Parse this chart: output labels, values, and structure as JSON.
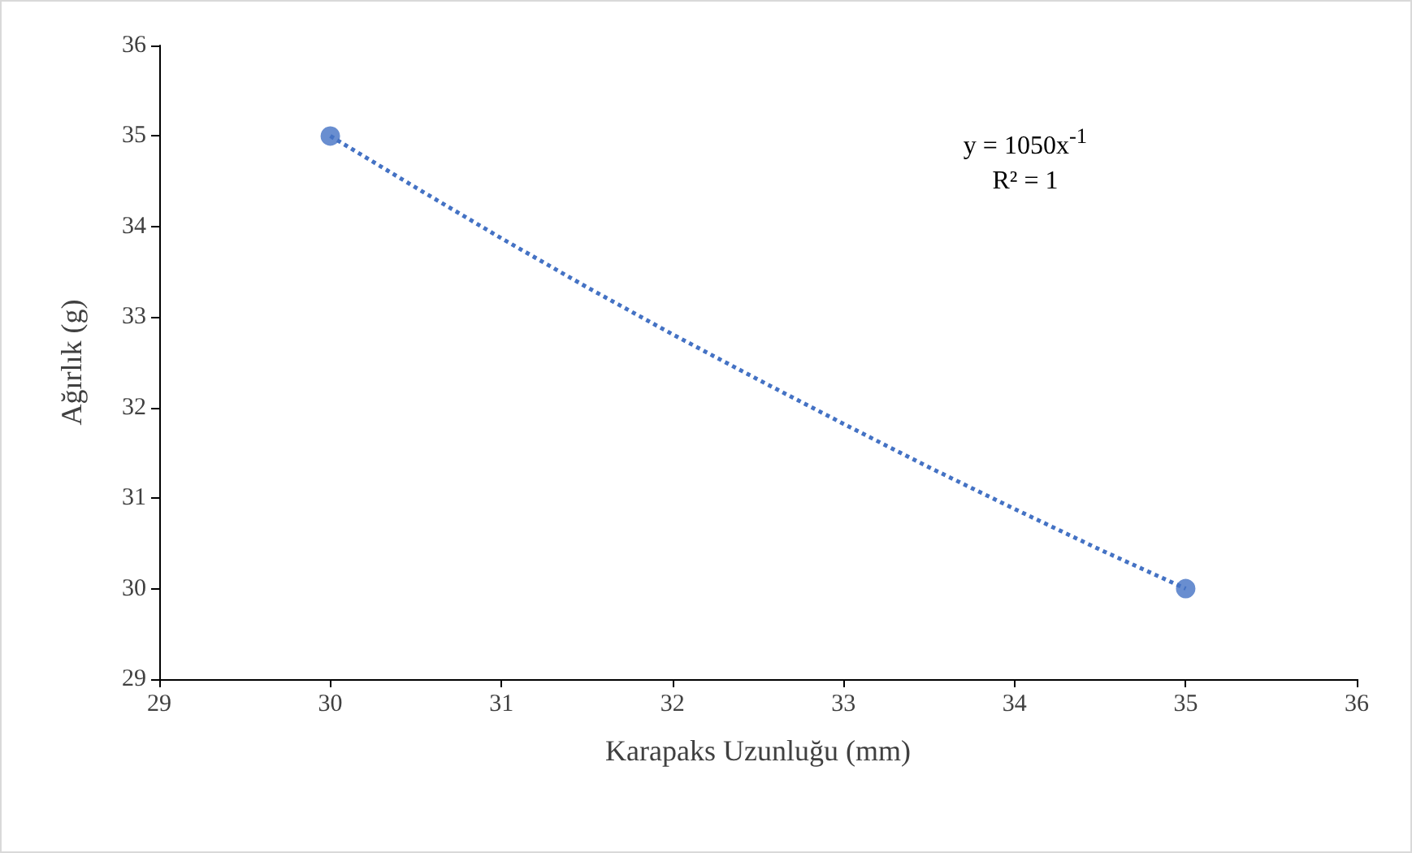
{
  "chart_data": {
    "type": "scatter",
    "xlabel": "Karapaks Uzunluğu (mm)",
    "ylabel": "Ağırlık (g)",
    "x": [
      30,
      35
    ],
    "xlim": [
      29,
      36
    ],
    "xticks": [
      29,
      30,
      31,
      32,
      33,
      34,
      35,
      36
    ],
    "ylim": [
      29,
      36
    ],
    "yticks": [
      29,
      30,
      31,
      32,
      33,
      34,
      35,
      36
    ],
    "grid": false,
    "series": [
      {
        "color": "#4472c4",
        "values": [
          35,
          30
        ],
        "marker": "circle"
      },
      {
        "type": "line",
        "color": "#4472c4",
        "x": [
          30,
          30.5,
          31,
          31.5,
          32,
          32.5,
          33,
          33.5,
          34,
          34.5,
          35
        ],
        "values": [
          35,
          34.43,
          33.87,
          33.33,
          32.81,
          32.31,
          31.82,
          31.34,
          30.88,
          30.43,
          30
        ],
        "marker": "none",
        "line_style": "dotted"
      }
    ],
    "annotations": [
      "y = 1050x$^{-1}$",
      "R² = 1"
    ]
  }
}
